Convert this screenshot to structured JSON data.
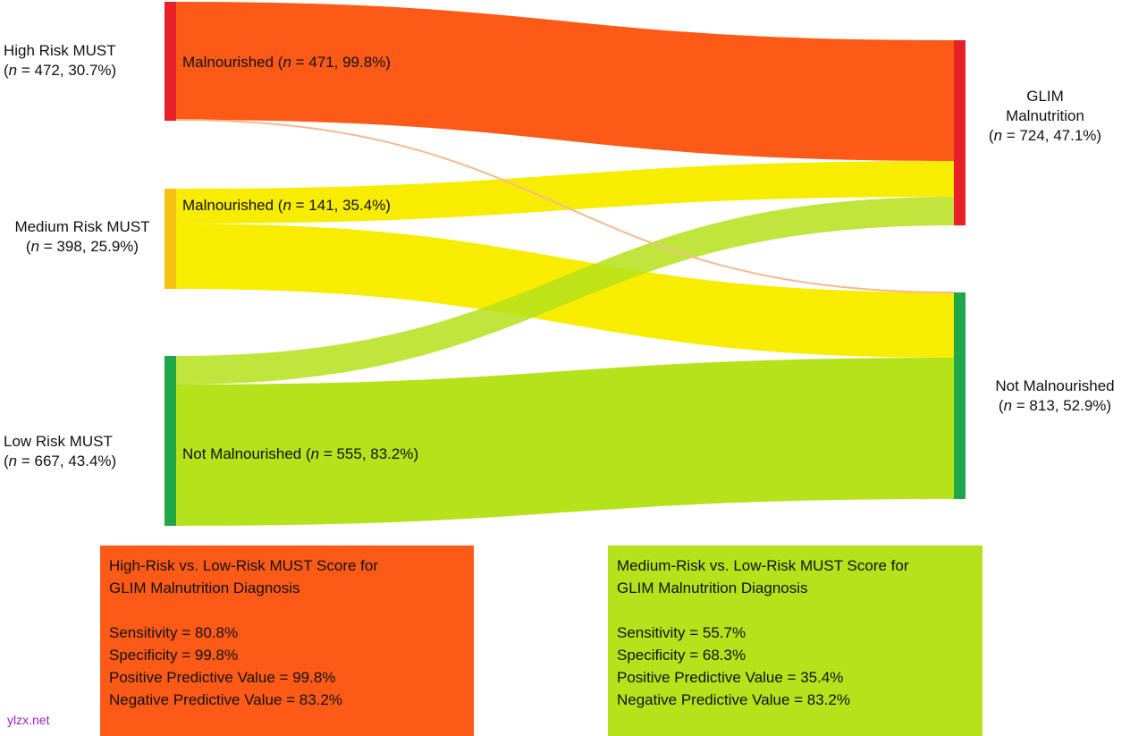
{
  "nodes": {
    "high": {
      "title": "High Risk MUST",
      "n_label": "n",
      "n_rest": " = 472, 30.7%)",
      "color": "#e8202a"
    },
    "medium": {
      "title": "Medium Risk MUST",
      "n_label": "n",
      "n_rest": " = 398, 25.9%)",
      "color": "#f8c013"
    },
    "low": {
      "title": "Low Risk MUST",
      "n_label": "n",
      "n_rest": " = 667, 43.4%)",
      "color": "#20a848"
    },
    "glim": {
      "title_line1": "GLIM",
      "title_line2": "Malnutrition",
      "n_label": "n",
      "n_rest": " = 724, 47.1%)",
      "color": "#e8202a"
    },
    "not": {
      "title": "Not Malnourished",
      "n_label": "n",
      "n_rest": " = 813, 52.9%)",
      "color": "#20a848"
    }
  },
  "flow_labels": {
    "high": {
      "prefix": "Malnourished (",
      "n": "n",
      "rest": " = 471, 99.8%)"
    },
    "medium": {
      "prefix": "Malnourished (",
      "n": "n",
      "rest": " = 141, 35.4%)"
    },
    "low": {
      "prefix": "Not Malnourished (",
      "n": "n",
      "rest": " = 555, 83.2%)"
    }
  },
  "flow_colors": {
    "orange": "#fd5a17",
    "yellow": "#f8ec00",
    "green": "#b5e21b",
    "thin": "#f7b98e"
  },
  "boxes": {
    "left": {
      "title_line1": "High-Risk vs. Low-Risk MUST Score for",
      "title_line2": "GLIM Malnutrition Diagnosis",
      "stats": [
        "Sensitivity = 80.8%",
        "Specificity = 99.8%",
        "Positive Predictive Value = 99.8%",
        "Negative Predictive Value = 83.2%"
      ],
      "color": "#fd5a17"
    },
    "right": {
      "title_line1": "Medium-Risk vs. Low-Risk MUST Score for",
      "title_line2": "GLIM Malnutrition Diagnosis",
      "stats": [
        "Sensitivity = 55.7%",
        "Specificity = 68.3%",
        "Positive Predictive Value = 35.4%",
        "Negative Predictive Value = 83.2%"
      ],
      "color": "#b5e21b"
    }
  },
  "watermark": "ylzx.net"
}
